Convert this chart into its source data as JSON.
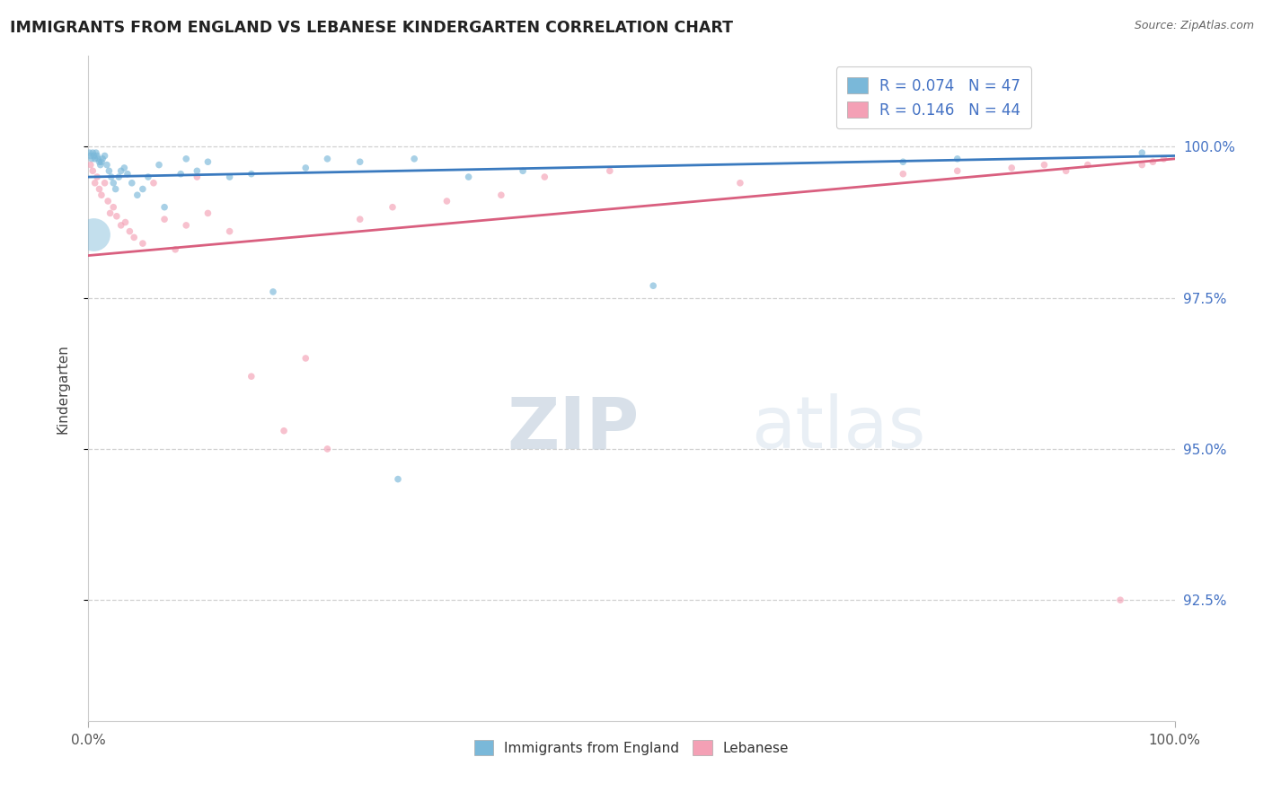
{
  "title": "IMMIGRANTS FROM ENGLAND VS LEBANESE KINDERGARTEN CORRELATION CHART",
  "source": "Source: ZipAtlas.com",
  "ylabel": "Kindergarten",
  "blue_label": "Immigrants from England",
  "pink_label": "Lebanese",
  "blue_color": "#7ab8d9",
  "pink_color": "#f4a0b5",
  "blue_line_color": "#3a7abf",
  "pink_line_color": "#d95f7f",
  "legend_R_blue": "R = 0.074",
  "legend_N_blue": "N = 47",
  "legend_R_pink": "R = 0.146",
  "legend_N_pink": "N = 44",
  "watermark_text": "ZIPatlas",
  "x_range": [
    0,
    100
  ],
  "y_range": [
    90.5,
    101.5
  ],
  "ytick_vals": [
    92.5,
    95.0,
    97.5,
    100.0
  ],
  "ytick_labels": [
    "92.5%",
    "95.0%",
    "97.5%",
    "100.0%"
  ],
  "blue_line_y": [
    99.5,
    99.85
  ],
  "pink_line_y": [
    98.2,
    99.8
  ],
  "background": "#ffffff",
  "grid_color": "#d0d0d0",
  "title_color": "#222222",
  "source_color": "#666666",
  "right_tick_color": "#4472c4",
  "blue_x": [
    0.1,
    0.2,
    0.3,
    0.4,
    0.5,
    0.6,
    0.7,
    0.8,
    0.9,
    1.0,
    1.1,
    1.2,
    1.3,
    1.5,
    1.7,
    1.9,
    2.1,
    2.3,
    2.5,
    2.8,
    3.0,
    3.3,
    3.6,
    4.0,
    4.5,
    5.0,
    5.5,
    6.5,
    7.0,
    8.5,
    9.0,
    10.0,
    11.0,
    13.0,
    15.0,
    17.0,
    20.0,
    22.0,
    25.0,
    28.5,
    30.0,
    35.0,
    40.0,
    52.0,
    75.0,
    80.0,
    97.0
  ],
  "blue_y": [
    99.9,
    99.85,
    99.8,
    99.9,
    99.85,
    99.8,
    99.9,
    99.85,
    99.8,
    99.75,
    99.7,
    99.75,
    99.8,
    99.85,
    99.7,
    99.6,
    99.5,
    99.4,
    99.3,
    99.5,
    99.6,
    99.65,
    99.55,
    99.4,
    99.2,
    99.3,
    99.5,
    99.7,
    99.0,
    99.55,
    99.8,
    99.6,
    99.75,
    99.5,
    99.55,
    97.6,
    99.65,
    99.8,
    99.75,
    94.5,
    99.8,
    99.5,
    99.6,
    97.7,
    99.75,
    99.8,
    99.9
  ],
  "blue_sizes": [
    30,
    30,
    30,
    30,
    30,
    30,
    30,
    30,
    30,
    30,
    30,
    30,
    30,
    30,
    30,
    30,
    30,
    30,
    30,
    30,
    30,
    30,
    30,
    30,
    30,
    30,
    30,
    30,
    30,
    30,
    30,
    30,
    30,
    30,
    30,
    30,
    30,
    30,
    30,
    30,
    30,
    30,
    30,
    30,
    30,
    30,
    30
  ],
  "blue_large_x": 0.5,
  "blue_large_y": 98.55,
  "blue_large_size": 700,
  "pink_x": [
    0.2,
    0.4,
    0.6,
    0.8,
    1.0,
    1.2,
    1.5,
    1.8,
    2.0,
    2.3,
    2.6,
    3.0,
    3.4,
    3.8,
    4.2,
    5.0,
    6.0,
    7.0,
    8.0,
    9.0,
    10.0,
    11.0,
    13.0,
    15.0,
    18.0,
    20.0,
    22.0,
    25.0,
    28.0,
    33.0,
    38.0,
    42.0,
    48.0,
    60.0,
    75.0,
    80.0,
    85.0,
    88.0,
    90.0,
    92.0,
    95.0,
    97.0,
    98.0,
    99.0
  ],
  "pink_y": [
    99.7,
    99.6,
    99.4,
    99.5,
    99.3,
    99.2,
    99.4,
    99.1,
    98.9,
    99.0,
    98.85,
    98.7,
    98.75,
    98.6,
    98.5,
    98.4,
    99.4,
    98.8,
    98.3,
    98.7,
    99.5,
    98.9,
    98.6,
    96.2,
    95.3,
    96.5,
    95.0,
    98.8,
    99.0,
    99.1,
    99.2,
    99.5,
    99.6,
    99.4,
    99.55,
    99.6,
    99.65,
    99.7,
    99.6,
    99.7,
    92.5,
    99.7,
    99.75,
    99.8
  ],
  "pink_sizes": [
    30,
    30,
    30,
    30,
    30,
    30,
    30,
    30,
    30,
    30,
    30,
    30,
    30,
    30,
    30,
    30,
    30,
    30,
    30,
    30,
    30,
    30,
    30,
    30,
    30,
    30,
    30,
    30,
    30,
    30,
    30,
    30,
    30,
    30,
    30,
    30,
    30,
    30,
    30,
    30,
    30,
    30,
    30,
    30
  ]
}
